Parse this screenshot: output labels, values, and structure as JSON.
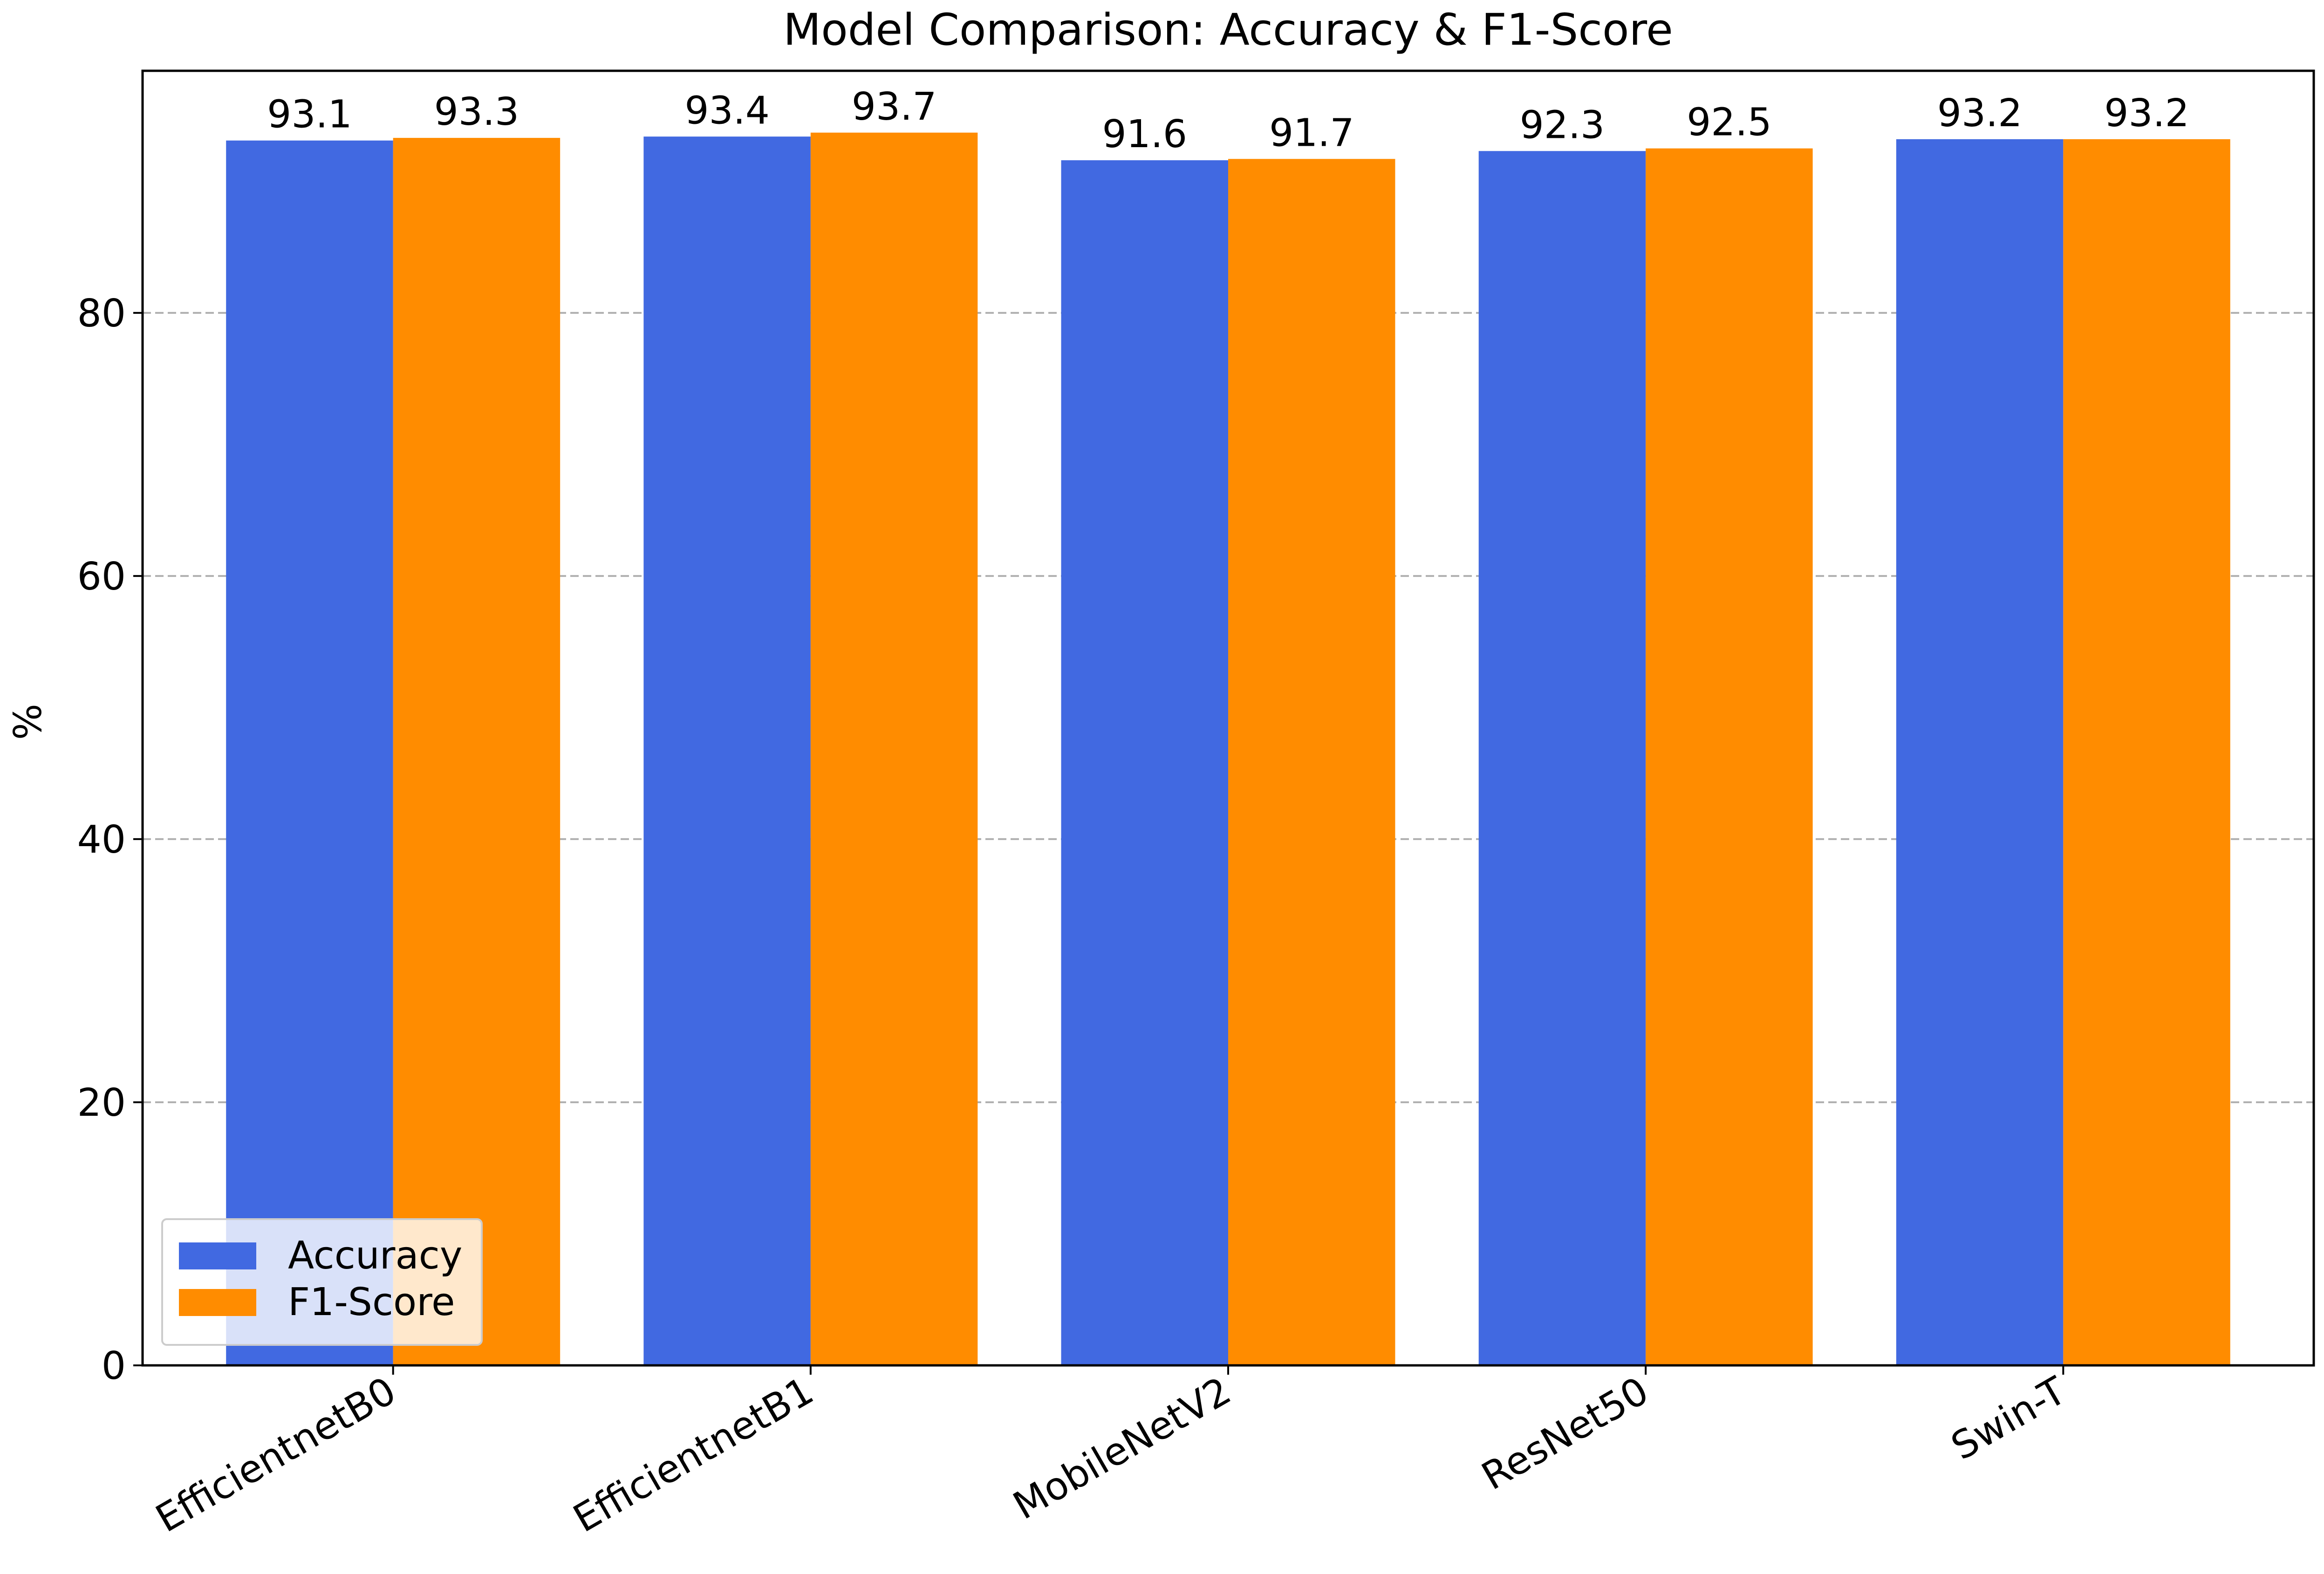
{
  "chart_data": {
    "type": "bar",
    "title": "Model Comparison: Accuracy & F1-Score",
    "xlabel": "",
    "ylabel": "%",
    "categories": [
      "EfficientnetB0",
      "EfficientnetB1",
      "MobileNetV2",
      "ResNet50",
      "Swin-T"
    ],
    "series": [
      {
        "name": "Accuracy",
        "color": "#4169e1",
        "values": [
          93.1,
          93.4,
          91.6,
          92.3,
          93.2
        ],
        "value_labels": [
          "93.1",
          "93.4",
          "91.6",
          "92.3",
          "93.2"
        ]
      },
      {
        "name": "F1-Score",
        "color": "#ff8c00",
        "values": [
          93.3,
          93.7,
          91.7,
          92.5,
          93.2
        ],
        "value_labels": [
          "93.3",
          "93.7",
          "91.7",
          "92.5",
          "93.2"
        ]
      }
    ],
    "ylim": [
      0,
      98.4
    ],
    "yticks": [
      0,
      20,
      40,
      60,
      80
    ],
    "ytick_labels": [
      "0",
      "20",
      "40",
      "60",
      "80"
    ],
    "grid": "y, dashed",
    "legend_placement": "lower-left"
  }
}
